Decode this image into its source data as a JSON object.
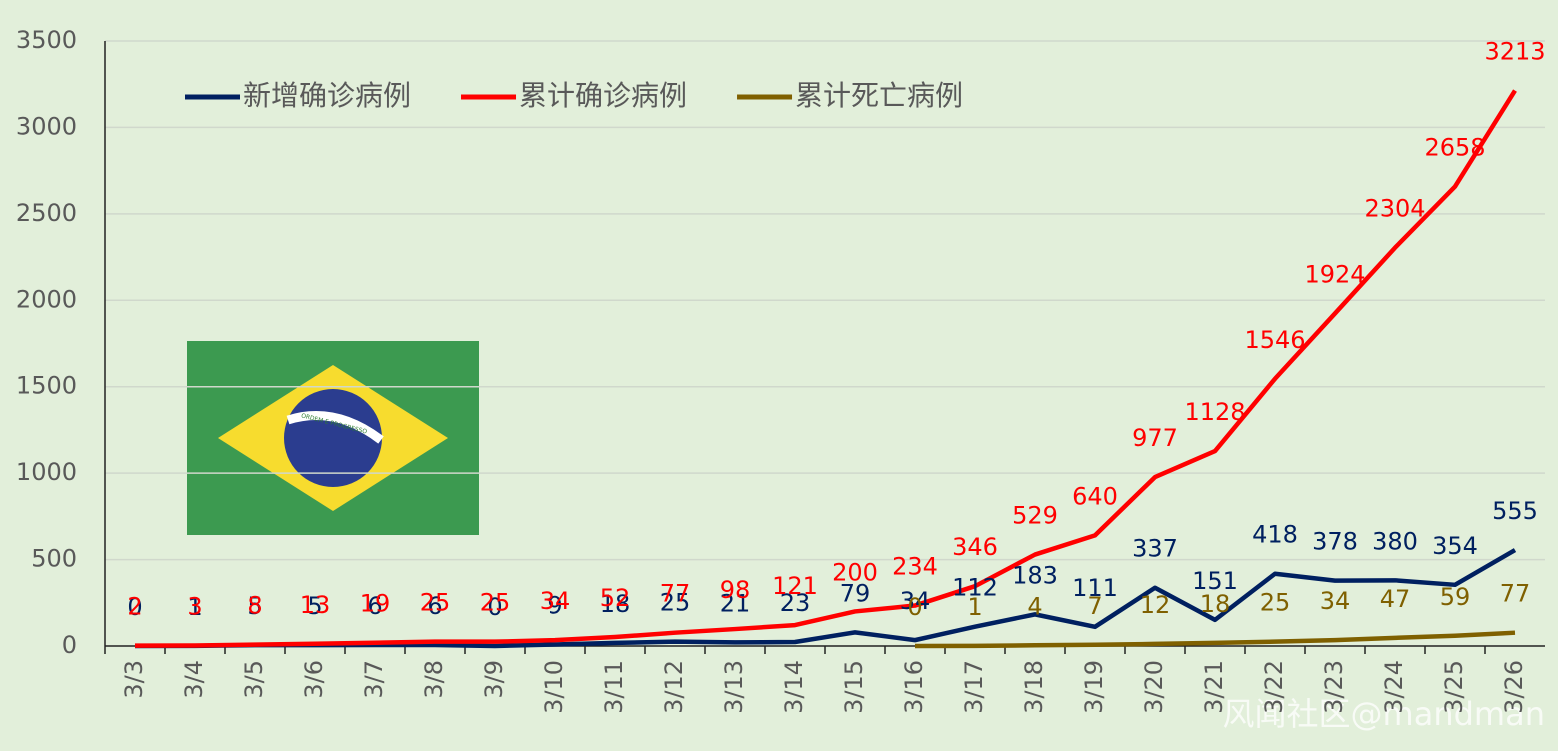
{
  "chart_data": {
    "type": "line",
    "categories": [
      "3/3",
      "3/4",
      "3/5",
      "3/6",
      "3/7",
      "3/8",
      "3/9",
      "3/10",
      "3/11",
      "3/12",
      "3/13",
      "3/14",
      "3/15",
      "3/16",
      "3/17",
      "3/18",
      "3/19",
      "3/20",
      "3/21",
      "3/22",
      "3/23",
      "3/24",
      "3/25",
      "3/26"
    ],
    "series": [
      {
        "name": "新增确诊病例",
        "color": "#002060",
        "values": [
          0,
          1,
          5,
          5,
          6,
          6,
          0,
          9,
          18,
          25,
          21,
          23,
          79,
          34,
          112,
          183,
          111,
          337,
          151,
          418,
          378,
          380,
          354,
          555
        ]
      },
      {
        "name": "累计确诊病例",
        "color": "#ff0000",
        "values": [
          2,
          3,
          8,
          13,
          19,
          25,
          25,
          34,
          52,
          77,
          98,
          121,
          200,
          234,
          346,
          529,
          640,
          977,
          1128,
          1546,
          1924,
          2304,
          2658,
          3213
        ]
      },
      {
        "name": "累计死亡病例",
        "color": "#7f6000",
        "values": [
          null,
          null,
          null,
          null,
          null,
          null,
          null,
          null,
          null,
          null,
          null,
          null,
          null,
          0,
          1,
          4,
          7,
          12,
          18,
          25,
          34,
          47,
          59,
          77
        ]
      }
    ],
    "ylim": [
      0,
      3500
    ],
    "yticks": [
      0,
      500,
      1000,
      1500,
      2000,
      2500,
      3000,
      3500
    ],
    "grid": true,
    "legend": "top",
    "flag_motto": "ORDEM E PROGRESSO",
    "watermark": "风闻社区@mandman"
  }
}
